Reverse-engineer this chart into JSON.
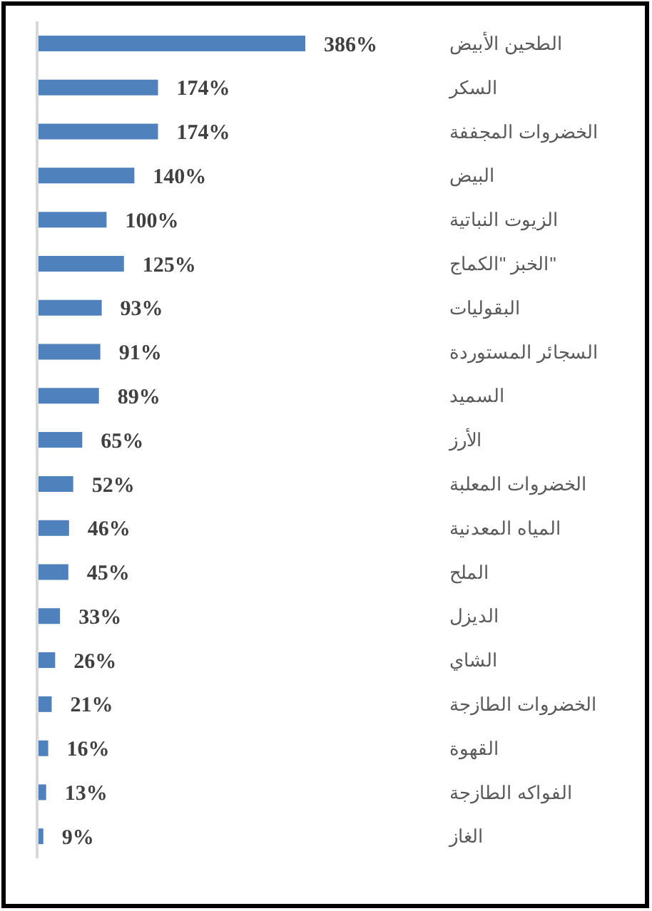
{
  "chart_data": {
    "type": "bar",
    "orientation": "horizontal",
    "categories": [
      "الطحين الأبيض",
      "السكر",
      "الخضروات المجففة",
      "البيض",
      "الزيوت النباتية",
      "الخبز \"الكماج\"",
      "البقوليات",
      "السجائر المستوردة",
      "السميد",
      "الأرز",
      "الخضروات المعلبة",
      "المياه المعدنية",
      "الملح",
      "الديزل",
      "الشاي",
      "الخضروات الطازجة",
      "القهوة",
      "الفواكه الطازجة",
      "الغاز"
    ],
    "values": [
      386,
      174,
      174,
      140,
      100,
      125,
      93,
      91,
      89,
      65,
      52,
      46,
      45,
      33,
      26,
      21,
      16,
      13,
      9
    ],
    "value_labels": [
      "386%",
      "174%",
      "174%",
      "140%",
      "100%",
      "125%",
      "93%",
      "91%",
      "89%",
      "65%",
      "52%",
      "46%",
      "45%",
      "33%",
      "26%",
      "21%",
      "16%",
      "13%",
      "9%"
    ],
    "color": "#4f81bd",
    "tick_labels": "y"
  }
}
